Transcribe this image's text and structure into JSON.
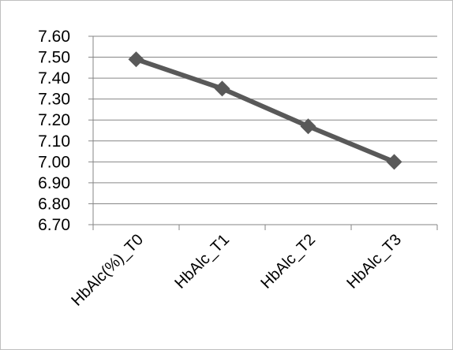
{
  "chart_data": {
    "type": "line",
    "title": "",
    "xlabel": "",
    "ylabel": "",
    "categories": [
      "HbAlc(%)_T0",
      "HbAlc_T1",
      "HbAlc_T2",
      "HbAlc_T3"
    ],
    "series": [
      {
        "values": [
          7.49,
          7.35,
          7.17,
          7.0
        ],
        "color": "#595959",
        "marker": "diamond"
      }
    ],
    "ylim": [
      6.7,
      7.6
    ],
    "yticks": [
      "7.60",
      "7.50",
      "7.40",
      "7.30",
      "7.20",
      "7.10",
      "7.00",
      "6.90",
      "6.80",
      "6.70"
    ],
    "grid": true,
    "legend": "none"
  }
}
